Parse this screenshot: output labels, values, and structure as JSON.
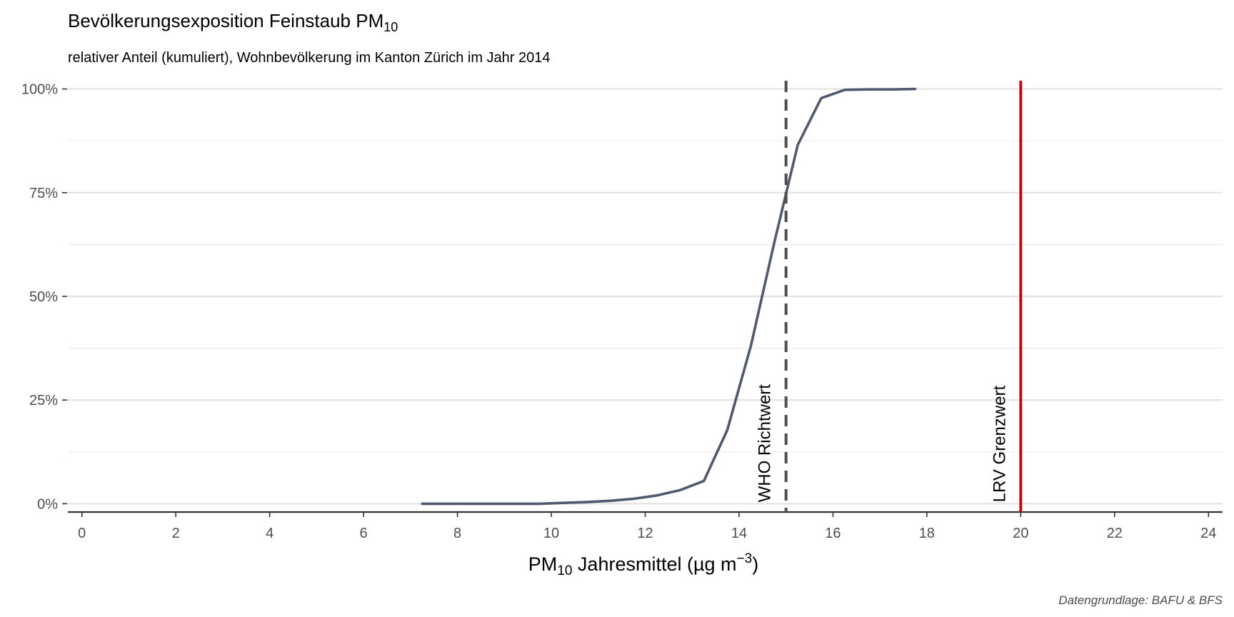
{
  "chart_data": {
    "type": "line",
    "title_main": "Bevölkerungsexposition Feinstaub PM",
    "title_sub": "10",
    "subtitle": "relativer Anteil (kumuliert), Wohnbevölkerung im Kanton Zürich im Jahr 2014",
    "xlabel_pre": "PM",
    "xlabel_sub": "10",
    "xlabel_main": " Jahresmittel (µg m",
    "xlabel_sup": "−3",
    "xlabel_post": ")",
    "caption": "Datengrundlage: BAFU & BFS",
    "xlim": [
      -0.3,
      24.3
    ],
    "ylim": [
      -0.02,
      1.02
    ],
    "x_ticks": [
      0,
      2,
      4,
      6,
      8,
      10,
      12,
      14,
      16,
      18,
      20,
      22,
      24
    ],
    "x_tick_labels": [
      "0",
      "2",
      "4",
      "6",
      "8",
      "10",
      "12",
      "14",
      "16",
      "18",
      "20",
      "22",
      "24"
    ],
    "y_ticks": [
      0,
      0.25,
      0.5,
      0.75,
      1.0
    ],
    "y_tick_labels": [
      "0%",
      "25%",
      "50%",
      "75%",
      "100%"
    ],
    "y_minor_ticks": [
      0.125,
      0.375,
      0.625,
      0.875
    ],
    "grid": true,
    "series": [
      {
        "color": "#4f5a6e",
        "x": [
          7.25,
          7.75,
          8.25,
          8.75,
          9.25,
          9.75,
          10.25,
          10.75,
          11.25,
          11.75,
          12.25,
          12.75,
          13.25,
          13.75,
          14.25,
          14.75,
          15.25,
          15.75,
          16.25,
          16.75,
          17.25,
          17.75
        ],
        "y": [
          0.0,
          0.0,
          0.0,
          0.0,
          0.0,
          0.0,
          0.002,
          0.004,
          0.007,
          0.012,
          0.02,
          0.033,
          0.055,
          0.178,
          0.38,
          0.63,
          0.865,
          0.978,
          0.998,
          0.999,
          0.999,
          1.0
        ]
      }
    ],
    "reference_lines": [
      {
        "x": 15,
        "label": "WHO Richtwert",
        "color": "#4d4d4d",
        "style": "dashed"
      },
      {
        "x": 20,
        "label": "LRV Grenzwert",
        "color": "#cc0000",
        "style": "solid"
      }
    ]
  }
}
